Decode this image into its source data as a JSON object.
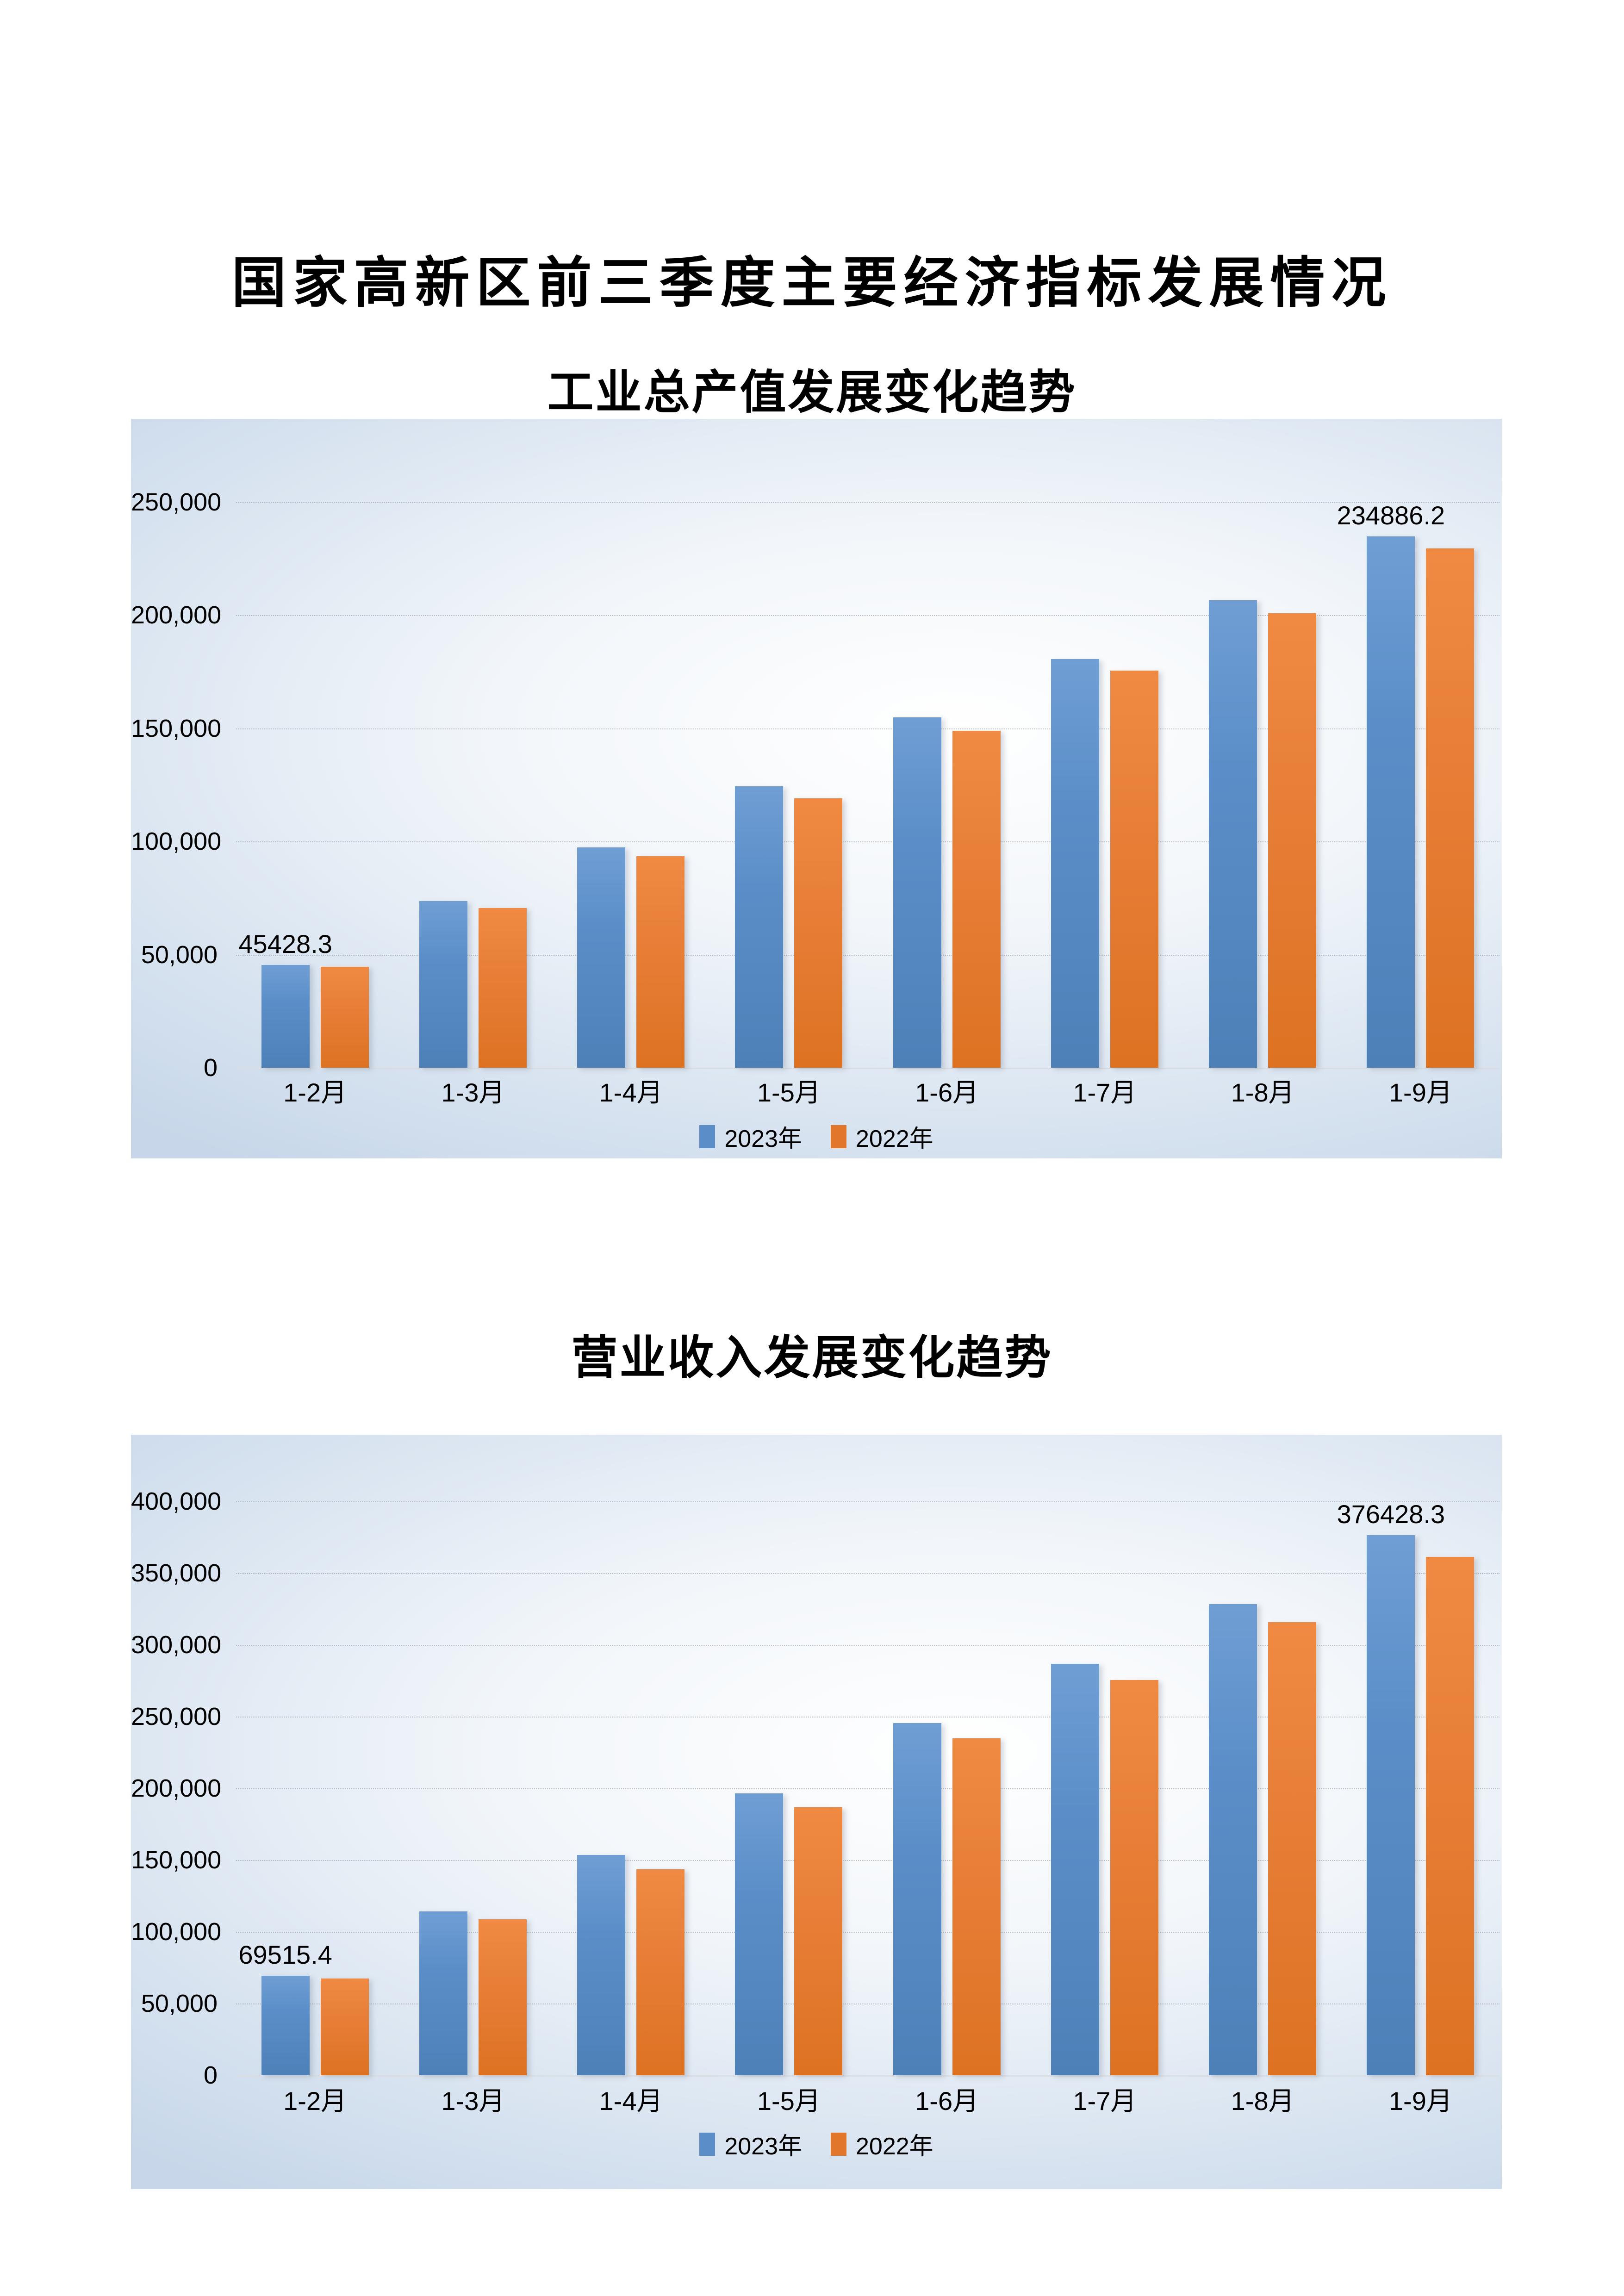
{
  "page": {
    "title": "国家高新区前三季度主要经济指标发展情况"
  },
  "chart_data": [
    {
      "type": "bar",
      "title": "工业总产值发展变化趋势",
      "categories": [
        "1-2月",
        "1-3月",
        "1-4月",
        "1-5月",
        "1-6月",
        "1-7月",
        "1-8月",
        "1-9月"
      ],
      "series": [
        {
          "name": "2023年",
          "color": "#5b8ec8",
          "values": [
            45428.3,
            73600,
            97300,
            124400,
            154900,
            180600,
            206700,
            234886.2
          ]
        },
        {
          "name": "2022年",
          "color": "#e2762b",
          "values": [
            44600,
            70500,
            93400,
            119000,
            148900,
            175500,
            201000,
            229600
          ]
        }
      ],
      "ylim": [
        0,
        250000
      ],
      "ytick_step": 50000,
      "grid": true,
      "legend_position": "bottom",
      "data_labels": [
        {
          "series": "2023年",
          "category": "1-2月",
          "text": "45428.3"
        },
        {
          "series": "2023年",
          "category": "1-9月",
          "text": "234886.2"
        }
      ]
    },
    {
      "type": "bar",
      "title": "营业收入发展变化趋势",
      "categories": [
        "1-2月",
        "1-3月",
        "1-4月",
        "1-5月",
        "1-6月",
        "1-7月",
        "1-8月",
        "1-9月"
      ],
      "series": [
        {
          "name": "2023年",
          "color": "#5b8ec8",
          "values": [
            69515.4,
            114200,
            153600,
            196300,
            245400,
            286900,
            328500,
            376428.3
          ]
        },
        {
          "name": "2022年",
          "color": "#e2762b",
          "values": [
            67400,
            108600,
            143400,
            186900,
            234700,
            275400,
            315700,
            361200
          ]
        }
      ],
      "ylim": [
        0,
        400000
      ],
      "ytick_step": 50000,
      "grid": true,
      "legend_position": "bottom",
      "data_labels": [
        {
          "series": "2023年",
          "category": "1-2月",
          "text": "69515.4"
        },
        {
          "series": "2023年",
          "category": "1-9月",
          "text": "376428.3"
        }
      ]
    }
  ],
  "colors": {
    "series_2023": "#5b8ec8",
    "series_2022": "#e2762b",
    "chart_bg_edge": "#c7d7e9",
    "chart_bg_center": "#ffffff",
    "text": "#000000"
  }
}
